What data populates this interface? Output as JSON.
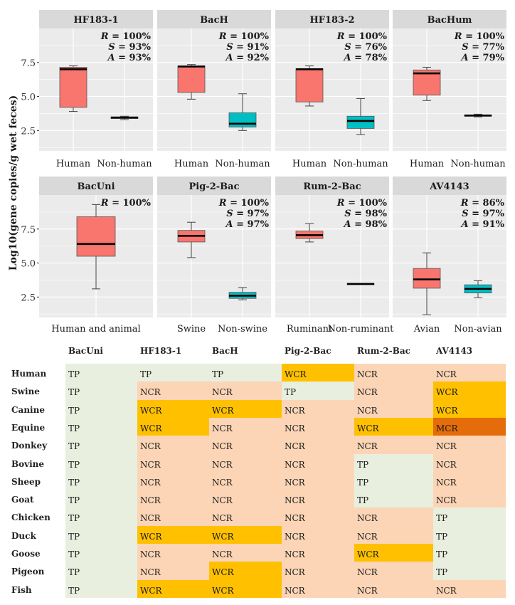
{
  "figure": {
    "y_axis_label": "Log10(gene copies/g wet feces)",
    "colors": {
      "target": "#f8766d",
      "nontarget": "#00bfc4",
      "panel_bg": "#ebebeb",
      "strip_bg": "#d9d9d9",
      "grid": "#ffffff"
    }
  },
  "chart_data": [
    {
      "type": "box",
      "panel": "HF183-1",
      "ylim": [
        1,
        10
      ],
      "yticks": [
        "2.5",
        "5.0",
        "7.5"
      ],
      "stats": [
        "R = 100%",
        "S = 93%",
        "A = 93%"
      ],
      "categories": [
        "Human",
        "Non-human"
      ],
      "boxes": [
        {
          "min": 3.9,
          "q1": 4.2,
          "median": 7.0,
          "q3": 7.15,
          "max": 7.25
        },
        {
          "min": 3.3,
          "q1": 3.38,
          "median": 3.45,
          "q3": 3.5,
          "max": 3.55
        }
      ]
    },
    {
      "type": "box",
      "panel": "BacH",
      "ylim": [
        1,
        10
      ],
      "yticks": [
        "2.5",
        "5.0",
        "7.5"
      ],
      "stats": [
        "R = 100%",
        "S = 91%",
        "A = 92%"
      ],
      "categories": [
        "Human",
        "Non-human"
      ],
      "boxes": [
        {
          "min": 4.8,
          "q1": 5.3,
          "median": 7.2,
          "q3": 7.25,
          "max": 7.35
        },
        {
          "min": 2.5,
          "q1": 2.75,
          "median": 3.0,
          "q3": 3.8,
          "max": 5.2
        }
      ]
    },
    {
      "type": "box",
      "panel": "HF183-2",
      "ylim": [
        1,
        10
      ],
      "yticks": [
        "2.5",
        "5.0",
        "7.5"
      ],
      "stats": [
        "R = 100%",
        "S = 76%",
        "A = 78%"
      ],
      "categories": [
        "Human",
        "Non-human"
      ],
      "boxes": [
        {
          "min": 4.3,
          "q1": 4.6,
          "median": 7.0,
          "q3": 7.05,
          "max": 7.25
        },
        {
          "min": 2.2,
          "q1": 2.65,
          "median": 3.2,
          "q3": 3.55,
          "max": 4.85
        }
      ]
    },
    {
      "type": "box",
      "panel": "BacHum",
      "ylim": [
        1,
        10
      ],
      "yticks": [
        "2.5",
        "5.0",
        "7.5"
      ],
      "stats": [
        "R = 100%",
        "S = 77%",
        "A = 79%"
      ],
      "categories": [
        "Human",
        "Non-human"
      ],
      "boxes": [
        {
          "min": 4.7,
          "q1": 5.1,
          "median": 6.7,
          "q3": 6.95,
          "max": 7.15
        },
        {
          "min": 3.5,
          "q1": 3.55,
          "median": 3.6,
          "q3": 3.65,
          "max": 3.7
        }
      ]
    },
    {
      "type": "box",
      "panel": "BacUni",
      "ylim": [
        1,
        10
      ],
      "yticks": [
        "2.5",
        "5.0",
        "7.5"
      ],
      "stats": [
        "R = 100%"
      ],
      "categories": [
        "Human and animal"
      ],
      "boxes": [
        {
          "min": 3.1,
          "q1": 5.5,
          "median": 6.4,
          "q3": 8.4,
          "max": 9.3
        }
      ]
    },
    {
      "type": "box",
      "panel": "Pig-2-Bac",
      "ylim": [
        1,
        10
      ],
      "yticks": [
        "2.5",
        "5.0",
        "7.5"
      ],
      "stats": [
        "R = 100%",
        "S = 97%",
        "A = 97%"
      ],
      "categories": [
        "Swine",
        "Non-swine"
      ],
      "boxes": [
        {
          "min": 5.4,
          "q1": 6.55,
          "median": 7.0,
          "q3": 7.4,
          "max": 8.0
        },
        {
          "min": 2.3,
          "q1": 2.4,
          "median": 2.6,
          "q3": 2.85,
          "max": 3.2
        }
      ]
    },
    {
      "type": "box",
      "panel": "Rum-2-Bac",
      "ylim": [
        1,
        10
      ],
      "yticks": [
        "2.5",
        "5.0",
        "7.5"
      ],
      "stats": [
        "R = 100%",
        "S = 98%",
        "A = 98%"
      ],
      "categories": [
        "Ruminant",
        "Non-ruminant"
      ],
      "boxes": [
        {
          "min": 6.55,
          "q1": 6.8,
          "median": 7.05,
          "q3": 7.35,
          "max": 7.9
        },
        {
          "min": 3.44,
          "q1": 3.45,
          "median": 3.46,
          "q3": 3.47,
          "max": 3.48
        }
      ]
    },
    {
      "type": "box",
      "panel": "AV4143",
      "ylim": [
        1,
        10
      ],
      "yticks": [
        "2.5",
        "5.0",
        "7.5"
      ],
      "stats": [
        "R = 86%",
        "S = 97%",
        "A = 91%"
      ],
      "categories": [
        "Avian",
        "Non-avian"
      ],
      "boxes": [
        {
          "min": 1.2,
          "q1": 3.15,
          "median": 3.8,
          "q3": 4.6,
          "max": 5.75
        },
        {
          "min": 2.45,
          "q1": 2.8,
          "median": 3.1,
          "q3": 3.4,
          "max": 3.7
        }
      ]
    }
  ],
  "table": {
    "type": "table",
    "colors": {
      "TP": "#e8efdf",
      "NCR": "#fcd5b6",
      "WCR": "#ffc000",
      "MCR": "#e46c0a"
    },
    "columns": [
      "BacUni",
      "HF183-1",
      "BacH",
      "Pig-2-Bac",
      "Rum-2-Bac",
      "AV4143"
    ],
    "rows": [
      {
        "label": "Human",
        "cells": [
          "TP",
          "TP",
          "TP",
          "WCR",
          "NCR",
          "NCR"
        ]
      },
      {
        "label": "Swine",
        "cells": [
          "TP",
          "NCR",
          "NCR",
          "TP",
          "NCR",
          "WCR"
        ]
      },
      {
        "label": "Canine",
        "cells": [
          "TP",
          "WCR",
          "WCR",
          "NCR",
          "NCR",
          "WCR"
        ]
      },
      {
        "label": "Equine",
        "cells": [
          "TP",
          "WCR",
          "NCR",
          "NCR",
          "WCR",
          "MCR"
        ]
      },
      {
        "label": "Donkey",
        "cells": [
          "TP",
          "NCR",
          "NCR",
          "NCR",
          "NCR",
          "NCR"
        ]
      },
      {
        "label": "Bovine",
        "cells": [
          "TP",
          "NCR",
          "NCR",
          "NCR",
          "TP",
          "NCR"
        ]
      },
      {
        "label": "Sheep",
        "cells": [
          "TP",
          "NCR",
          "NCR",
          "NCR",
          "TP",
          "NCR"
        ]
      },
      {
        "label": "Goat",
        "cells": [
          "TP",
          "NCR",
          "NCR",
          "NCR",
          "TP",
          "NCR"
        ]
      },
      {
        "label": "Chicken",
        "cells": [
          "TP",
          "NCR",
          "NCR",
          "NCR",
          "NCR",
          "TP"
        ]
      },
      {
        "label": "Duck",
        "cells": [
          "TP",
          "WCR",
          "WCR",
          "NCR",
          "NCR",
          "TP"
        ]
      },
      {
        "label": "Goose",
        "cells": [
          "TP",
          "NCR",
          "NCR",
          "NCR",
          "WCR",
          "TP"
        ]
      },
      {
        "label": "Pigeon",
        "cells": [
          "TP",
          "NCR",
          "WCR",
          "NCR",
          "NCR",
          "TP"
        ]
      },
      {
        "label": "Fish",
        "cells": [
          "TP",
          "WCR",
          "WCR",
          "NCR",
          "NCR",
          "NCR"
        ]
      }
    ]
  }
}
